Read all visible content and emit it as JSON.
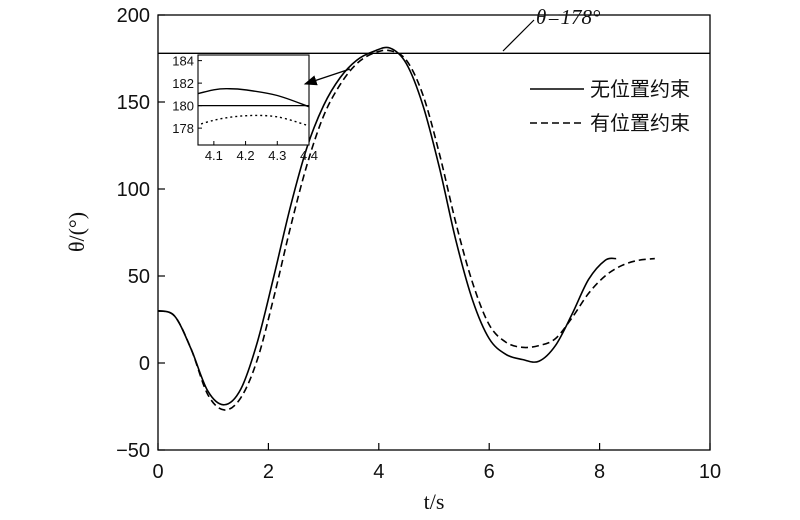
{
  "chart_data": {
    "type": "line",
    "xlabel": "t/s",
    "ylabel": "θ/(°)",
    "xlim": [
      0,
      10
    ],
    "ylim": [
      -50,
      200
    ],
    "xticks": [
      0,
      2,
      4,
      6,
      8,
      10
    ],
    "yticks": [
      -50,
      0,
      50,
      100,
      150,
      200
    ],
    "grid": false,
    "legend_position": "top-right",
    "reference_line": {
      "y": 178,
      "label": "θ=178°"
    },
    "series": [
      {
        "name": "无位置约束",
        "style": "solid",
        "x": [
          0,
          0.3,
          0.6,
          0.9,
          1.2,
          1.5,
          1.8,
          2.1,
          2.4,
          2.7,
          3.0,
          3.3,
          3.6,
          3.9,
          4.2,
          4.5,
          4.8,
          5.1,
          5.4,
          5.7,
          6.0,
          6.3,
          6.6,
          6.9,
          7.2,
          7.5,
          7.8,
          8.1,
          8.3
        ],
        "y": [
          30,
          27,
          8,
          -16,
          -24,
          -15,
          12,
          50,
          90,
          124,
          148,
          164,
          174,
          179,
          181,
          172,
          148,
          112,
          70,
          36,
          14,
          5,
          2,
          1,
          10,
          28,
          48,
          59,
          60
        ]
      },
      {
        "name": "有位置约束",
        "style": "dashed",
        "x": [
          0,
          0.3,
          0.6,
          0.9,
          1.2,
          1.5,
          1.8,
          2.1,
          2.4,
          2.7,
          3.0,
          3.3,
          3.6,
          3.9,
          4.2,
          4.5,
          4.8,
          5.1,
          5.4,
          5.7,
          6.0,
          6.3,
          6.6,
          6.9,
          7.2,
          7.5,
          7.8,
          8.1,
          8.4,
          8.7,
          9.0
        ],
        "y": [
          30,
          27,
          8,
          -18,
          -27,
          -20,
          2,
          38,
          78,
          114,
          142,
          160,
          172,
          178,
          179.5,
          174,
          154,
          120,
          80,
          46,
          22,
          12,
          9,
          10,
          14,
          26,
          40,
          50,
          56,
          59,
          60
        ]
      }
    ],
    "inset": {
      "xlim": [
        4.05,
        4.4
      ],
      "ylim": [
        176.5,
        184.5
      ],
      "xticks": [
        4.1,
        4.2,
        4.3,
        4.4
      ],
      "yticks": [
        178,
        180,
        182,
        184
      ],
      "reference_y": 180,
      "series": [
        {
          "name": "无位置约束",
          "style": "solid",
          "x": [
            4.0,
            4.1,
            4.15,
            4.2,
            4.3,
            4.4
          ],
          "y": [
            180.7,
            181.4,
            181.5,
            181.4,
            180.9,
            179.9
          ]
        },
        {
          "name": "有位置约束",
          "style": "dotted",
          "x": [
            4.0,
            4.1,
            4.2,
            4.3,
            4.4
          ],
          "y": [
            177.8,
            178.7,
            179.1,
            179.0,
            178.2
          ]
        }
      ]
    }
  }
}
